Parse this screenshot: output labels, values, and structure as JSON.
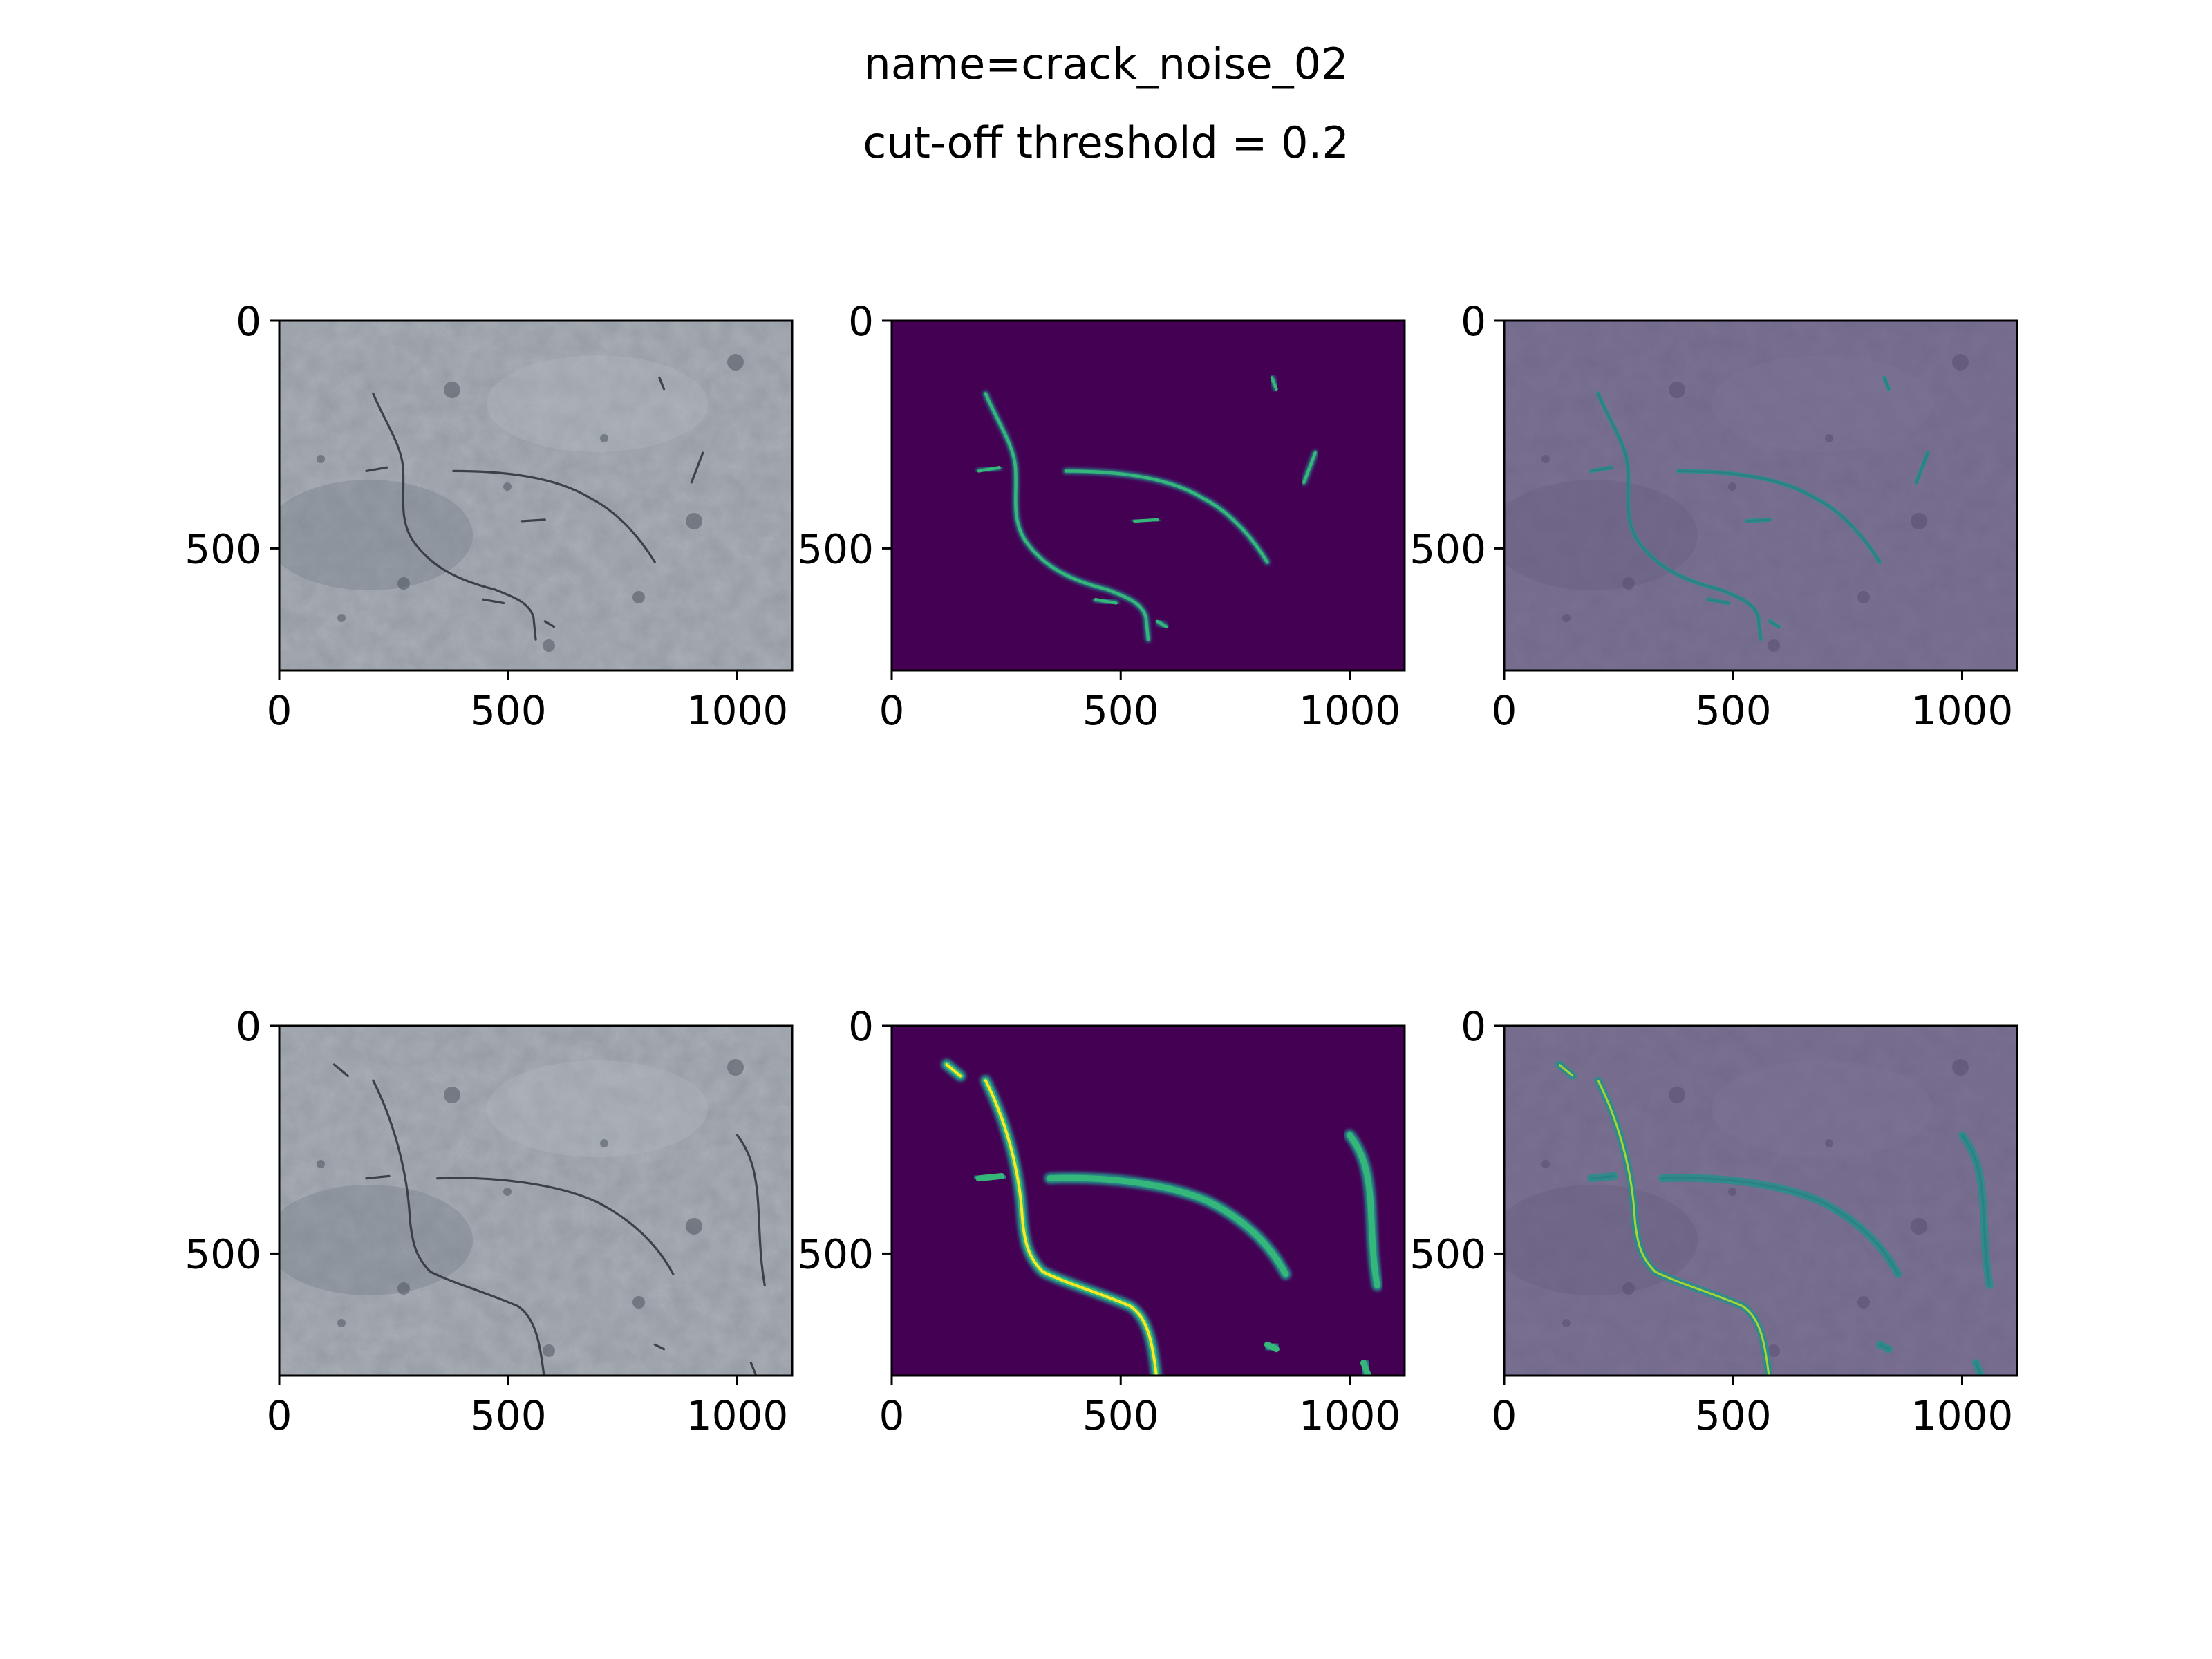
{
  "figure": {
    "title_line1": "name=crack_noise_02",
    "title_line2": "cut-off threshold = 0.2"
  },
  "colors": {
    "viridis_dark": "#440154",
    "viridis_mid": "#21918c",
    "viridis_bright": "#fde725",
    "stone_base": "#8d949c",
    "overlay_tint": "#5d4a7a"
  },
  "chart_data": [
    {
      "type": "heatmap",
      "panel": "original-image-top",
      "row": 0,
      "col": 0,
      "content": "photo",
      "xticks": [
        0,
        500,
        1000
      ],
      "yticks": [
        0,
        500
      ],
      "xlim": [
        0,
        1120
      ],
      "ylim": [
        768,
        0
      ]
    },
    {
      "type": "heatmap",
      "panel": "prediction-top",
      "row": 0,
      "col": 1,
      "content": "mask",
      "xticks": [
        0,
        500,
        1000
      ],
      "yticks": [
        0,
        500
      ],
      "xlim": [
        0,
        1120
      ],
      "ylim": [
        768,
        0
      ]
    },
    {
      "type": "heatmap",
      "panel": "overlay-top",
      "row": 0,
      "col": 2,
      "content": "overlay",
      "xticks": [
        0,
        500,
        1000
      ],
      "yticks": [
        0,
        500
      ],
      "xlim": [
        0,
        1120
      ],
      "ylim": [
        768,
        0
      ]
    },
    {
      "type": "heatmap",
      "panel": "original-image-bottom",
      "row": 1,
      "col": 0,
      "content": "photo",
      "xticks": [
        0,
        500,
        1000
      ],
      "yticks": [
        0,
        500
      ],
      "xlim": [
        0,
        1120
      ],
      "ylim": [
        768,
        0
      ]
    },
    {
      "type": "heatmap",
      "panel": "prediction-bottom",
      "row": 1,
      "col": 1,
      "content": "mask",
      "xticks": [
        0,
        500,
        1000
      ],
      "yticks": [
        0,
        500
      ],
      "xlim": [
        0,
        1120
      ],
      "ylim": [
        768,
        0
      ]
    },
    {
      "type": "heatmap",
      "panel": "overlay-bottom",
      "row": 1,
      "col": 2,
      "content": "overlay",
      "xticks": [
        0,
        500,
        1000
      ],
      "yticks": [
        0,
        500
      ],
      "xlim": [
        0,
        1120
      ],
      "ylim": [
        768,
        0
      ]
    }
  ]
}
